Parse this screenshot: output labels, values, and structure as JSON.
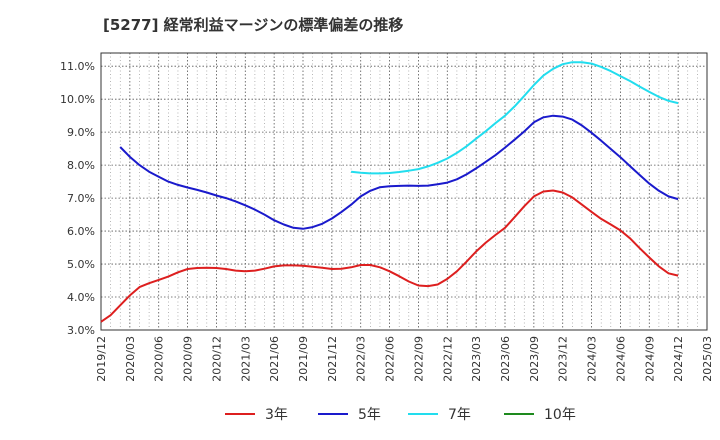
{
  "chart_data": {
    "type": "line",
    "title": "[5277]  経常利益マージンの標準偏差の推移",
    "x_ticks": [
      "2019/12",
      "2020/03",
      "2020/06",
      "2020/09",
      "2020/12",
      "2021/03",
      "2021/06",
      "2021/09",
      "2021/12",
      "2022/03",
      "2022/06",
      "2022/09",
      "2022/12",
      "2023/03",
      "2023/06",
      "2023/09",
      "2023/12",
      "2024/03",
      "2024/06",
      "2024/09",
      "2024/12",
      "2025/03"
    ],
    "y_ticks": [
      "3.0%",
      "4.0%",
      "5.0%",
      "6.0%",
      "7.0%",
      "8.0%",
      "9.0%",
      "10.0%",
      "11.0%"
    ],
    "ylim": [
      3.0,
      11.4
    ],
    "grid": true,
    "legend_position": "bottom",
    "series": [
      {
        "name": "3年",
        "color": "#dd1f1f",
        "points": [
          [
            "2019/12",
            3.25
          ],
          [
            "2020/01",
            3.45
          ],
          [
            "2020/02",
            3.75
          ],
          [
            "2020/03",
            4.05
          ],
          [
            "2020/04",
            4.3
          ],
          [
            "2020/05",
            4.42
          ],
          [
            "2020/06",
            4.52
          ],
          [
            "2020/07",
            4.62
          ],
          [
            "2020/08",
            4.75
          ],
          [
            "2020/09",
            4.85
          ],
          [
            "2020/10",
            4.88
          ],
          [
            "2020/11",
            4.89
          ],
          [
            "2020/12",
            4.88
          ],
          [
            "2021/01",
            4.85
          ],
          [
            "2021/02",
            4.8
          ],
          [
            "2021/03",
            4.78
          ],
          [
            "2021/04",
            4.8
          ],
          [
            "2021/05",
            4.86
          ],
          [
            "2021/06",
            4.93
          ],
          [
            "2021/07",
            4.96
          ],
          [
            "2021/08",
            4.96
          ],
          [
            "2021/09",
            4.95
          ],
          [
            "2021/10",
            4.92
          ],
          [
            "2021/11",
            4.89
          ],
          [
            "2021/12",
            4.85
          ],
          [
            "2022/01",
            4.86
          ],
          [
            "2022/02",
            4.9
          ],
          [
            "2022/03",
            4.97
          ],
          [
            "2022/04",
            4.97
          ],
          [
            "2022/05",
            4.9
          ],
          [
            "2022/06",
            4.78
          ],
          [
            "2022/07",
            4.63
          ],
          [
            "2022/08",
            4.47
          ],
          [
            "2022/09",
            4.35
          ],
          [
            "2022/10",
            4.33
          ],
          [
            "2022/11",
            4.38
          ],
          [
            "2022/12",
            4.55
          ],
          [
            "2023/01",
            4.78
          ],
          [
            "2023/02",
            5.07
          ],
          [
            "2023/03",
            5.38
          ],
          [
            "2023/04",
            5.65
          ],
          [
            "2023/05",
            5.88
          ],
          [
            "2023/06",
            6.1
          ],
          [
            "2023/07",
            6.42
          ],
          [
            "2023/08",
            6.75
          ],
          [
            "2023/09",
            7.05
          ],
          [
            "2023/10",
            7.2
          ],
          [
            "2023/11",
            7.23
          ],
          [
            "2023/12",
            7.17
          ],
          [
            "2024/01",
            7.02
          ],
          [
            "2024/02",
            6.8
          ],
          [
            "2024/03",
            6.58
          ],
          [
            "2024/04",
            6.37
          ],
          [
            "2024/05",
            6.2
          ],
          [
            "2024/06",
            6.02
          ],
          [
            "2024/07",
            5.78
          ],
          [
            "2024/08",
            5.48
          ],
          [
            "2024/09",
            5.2
          ],
          [
            "2024/10",
            4.93
          ],
          [
            "2024/11",
            4.72
          ],
          [
            "2024/12",
            4.65
          ]
        ]
      },
      {
        "name": "5年",
        "color": "#1a1acc",
        "points": [
          [
            "2020/02",
            8.55
          ],
          [
            "2020/03",
            8.25
          ],
          [
            "2020/04",
            8.0
          ],
          [
            "2020/05",
            7.8
          ],
          [
            "2020/06",
            7.65
          ],
          [
            "2020/07",
            7.5
          ],
          [
            "2020/08",
            7.4
          ],
          [
            "2020/09",
            7.32
          ],
          [
            "2020/10",
            7.25
          ],
          [
            "2020/11",
            7.17
          ],
          [
            "2020/12",
            7.08
          ],
          [
            "2021/01",
            7.0
          ],
          [
            "2021/02",
            6.9
          ],
          [
            "2021/03",
            6.78
          ],
          [
            "2021/04",
            6.65
          ],
          [
            "2021/05",
            6.5
          ],
          [
            "2021/06",
            6.33
          ],
          [
            "2021/07",
            6.2
          ],
          [
            "2021/08",
            6.1
          ],
          [
            "2021/09",
            6.07
          ],
          [
            "2021/10",
            6.12
          ],
          [
            "2021/11",
            6.22
          ],
          [
            "2021/12",
            6.38
          ],
          [
            "2022/01",
            6.58
          ],
          [
            "2022/02",
            6.8
          ],
          [
            "2022/03",
            7.05
          ],
          [
            "2022/04",
            7.22
          ],
          [
            "2022/05",
            7.33
          ],
          [
            "2022/06",
            7.36
          ],
          [
            "2022/07",
            7.37
          ],
          [
            "2022/08",
            7.38
          ],
          [
            "2022/09",
            7.37
          ],
          [
            "2022/10",
            7.38
          ],
          [
            "2022/11",
            7.42
          ],
          [
            "2022/12",
            7.47
          ],
          [
            "2023/01",
            7.57
          ],
          [
            "2023/02",
            7.72
          ],
          [
            "2023/03",
            7.9
          ],
          [
            "2023/04",
            8.1
          ],
          [
            "2023/05",
            8.3
          ],
          [
            "2023/06",
            8.53
          ],
          [
            "2023/07",
            8.77
          ],
          [
            "2023/08",
            9.02
          ],
          [
            "2023/09",
            9.3
          ],
          [
            "2023/10",
            9.45
          ],
          [
            "2023/11",
            9.5
          ],
          [
            "2023/12",
            9.47
          ],
          [
            "2024/01",
            9.38
          ],
          [
            "2024/02",
            9.2
          ],
          [
            "2024/03",
            8.98
          ],
          [
            "2024/04",
            8.74
          ],
          [
            "2024/05",
            8.49
          ],
          [
            "2024/06",
            8.24
          ],
          [
            "2024/07",
            7.97
          ],
          [
            "2024/08",
            7.7
          ],
          [
            "2024/09",
            7.44
          ],
          [
            "2024/10",
            7.22
          ],
          [
            "2024/11",
            7.05
          ],
          [
            "2024/12",
            6.97
          ]
        ]
      },
      {
        "name": "7年",
        "color": "#22ddee",
        "points": [
          [
            "2022/02",
            7.8
          ],
          [
            "2022/03",
            7.77
          ],
          [
            "2022/04",
            7.75
          ],
          [
            "2022/05",
            7.75
          ],
          [
            "2022/06",
            7.76
          ],
          [
            "2022/07",
            7.79
          ],
          [
            "2022/08",
            7.83
          ],
          [
            "2022/09",
            7.88
          ],
          [
            "2022/10",
            7.96
          ],
          [
            "2022/11",
            8.07
          ],
          [
            "2022/12",
            8.2
          ],
          [
            "2023/01",
            8.37
          ],
          [
            "2023/02",
            8.57
          ],
          [
            "2023/03",
            8.8
          ],
          [
            "2023/04",
            9.03
          ],
          [
            "2023/05",
            9.27
          ],
          [
            "2023/06",
            9.5
          ],
          [
            "2023/07",
            9.78
          ],
          [
            "2023/08",
            10.1
          ],
          [
            "2023/09",
            10.43
          ],
          [
            "2023/10",
            10.72
          ],
          [
            "2023/11",
            10.92
          ],
          [
            "2023/12",
            11.06
          ],
          [
            "2024/01",
            11.12
          ],
          [
            "2024/02",
            11.12
          ],
          [
            "2024/03",
            11.08
          ],
          [
            "2024/04",
            10.98
          ],
          [
            "2024/05",
            10.85
          ],
          [
            "2024/06",
            10.7
          ],
          [
            "2024/07",
            10.55
          ],
          [
            "2024/08",
            10.38
          ],
          [
            "2024/09",
            10.22
          ],
          [
            "2024/10",
            10.07
          ],
          [
            "2024/11",
            9.95
          ],
          [
            "2024/12",
            9.88
          ]
        ]
      },
      {
        "name": "10年",
        "color": "#1e8a1e",
        "points": []
      }
    ]
  }
}
